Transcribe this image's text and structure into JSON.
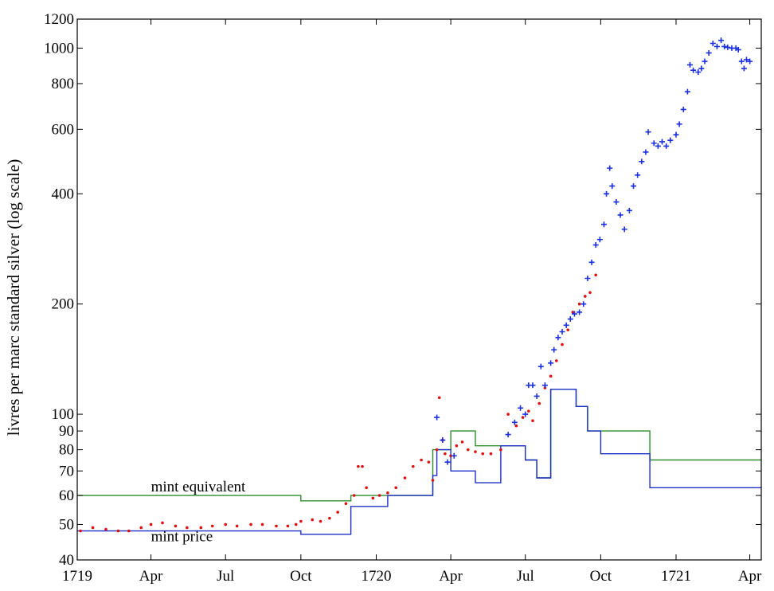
{
  "chart_data": {
    "type": "line",
    "ylabel": "livres per marc standard silver (log scale)",
    "xlabel": "",
    "yscale": "log",
    "ylim": [
      40,
      1200
    ],
    "xlim": [
      "1719-01-01",
      "1721-04-15"
    ],
    "grid": false,
    "y_ticks": [
      40,
      50,
      60,
      70,
      80,
      90,
      100,
      200,
      400,
      600,
      800,
      1000,
      1200
    ],
    "y_tick_labels": [
      "40",
      "50",
      "60",
      "70",
      "80",
      "90",
      "100",
      "200",
      "400",
      "600",
      "800",
      "1000",
      "1200"
    ],
    "x_ticks": [
      {
        "date": "1719-01-01",
        "label": "1719"
      },
      {
        "date": "1719-04-01",
        "label": "Apr"
      },
      {
        "date": "1719-07-01",
        "label": "Jul"
      },
      {
        "date": "1719-10-01",
        "label": "Oct"
      },
      {
        "date": "1720-01-01",
        "label": "1720"
      },
      {
        "date": "1720-04-01",
        "label": "Apr"
      },
      {
        "date": "1720-07-01",
        "label": "Jul"
      },
      {
        "date": "1720-10-01",
        "label": "Oct"
      },
      {
        "date": "1721-01-01",
        "label": "1721"
      },
      {
        "date": "1721-04-01",
        "label": "Apr"
      }
    ],
    "annotations": [
      {
        "text": "mint equivalent",
        "date": "1719-04-01",
        "value": 61.5
      },
      {
        "text": "mint price",
        "date": "1719-04-01",
        "value": 45.0
      }
    ],
    "series": [
      {
        "name": "mint equivalent",
        "style": "step",
        "color": "#2e8b2e",
        "points": [
          [
            "1719-01-01",
            60
          ],
          [
            "1719-10-01",
            58
          ],
          [
            "1719-12-01",
            60
          ],
          [
            "1720-03-10",
            80
          ],
          [
            "1720-04-01",
            90
          ],
          [
            "1720-05-01",
            82
          ],
          [
            "1720-07-01",
            75
          ],
          [
            "1720-07-15",
            67
          ],
          [
            "1720-08-01",
            117
          ],
          [
            "1720-09-01",
            105
          ],
          [
            "1720-09-15",
            90
          ],
          [
            "1720-11-30",
            75
          ],
          [
            "1721-04-15",
            75
          ]
        ]
      },
      {
        "name": "mint price",
        "style": "step",
        "color": "#1f2fc8",
        "points": [
          [
            "1719-01-01",
            48
          ],
          [
            "1719-10-01",
            47
          ],
          [
            "1719-12-01",
            56
          ],
          [
            "1720-01-15",
            60
          ],
          [
            "1720-03-10",
            68
          ],
          [
            "1720-03-15",
            80
          ],
          [
            "1720-04-01",
            70
          ],
          [
            "1720-05-01",
            65
          ],
          [
            "1720-06-01",
            82
          ],
          [
            "1720-07-01",
            75
          ],
          [
            "1720-07-15",
            67
          ],
          [
            "1720-08-01",
            117
          ],
          [
            "1720-09-01",
            105
          ],
          [
            "1720-09-15",
            90
          ],
          [
            "1720-10-01",
            78
          ],
          [
            "1720-11-30",
            63
          ],
          [
            "1721-04-15",
            63
          ]
        ]
      },
      {
        "name": "",
        "style": "dots",
        "color": "#e01010",
        "points": [
          [
            "1719-01-05",
            48
          ],
          [
            "1719-01-20",
            49
          ],
          [
            "1719-02-05",
            48.5
          ],
          [
            "1719-02-20",
            48
          ],
          [
            "1719-03-05",
            48
          ],
          [
            "1719-03-20",
            49
          ],
          [
            "1719-04-01",
            50
          ],
          [
            "1719-04-15",
            50.5
          ],
          [
            "1719-05-01",
            49.5
          ],
          [
            "1719-05-15",
            49
          ],
          [
            "1719-06-01",
            49
          ],
          [
            "1719-06-15",
            49.5
          ],
          [
            "1719-07-01",
            50
          ],
          [
            "1719-07-15",
            49.5
          ],
          [
            "1719-08-01",
            50
          ],
          [
            "1719-08-15",
            50
          ],
          [
            "1719-09-01",
            49.5
          ],
          [
            "1719-09-15",
            49.5
          ],
          [
            "1719-09-25",
            50
          ],
          [
            "1719-10-01",
            51
          ],
          [
            "1719-10-15",
            51.5
          ],
          [
            "1719-10-25",
            51
          ],
          [
            "1719-11-05",
            52
          ],
          [
            "1719-11-15",
            54
          ],
          [
            "1719-11-25",
            57
          ],
          [
            "1719-12-05",
            60
          ],
          [
            "1719-12-10",
            72
          ],
          [
            "1719-12-15",
            72
          ],
          [
            "1719-12-20",
            63
          ],
          [
            "1719-12-28",
            59
          ],
          [
            "1720-01-05",
            60
          ],
          [
            "1720-01-15",
            61
          ],
          [
            "1720-01-25",
            63
          ],
          [
            "1720-02-05",
            67
          ],
          [
            "1720-02-15",
            72
          ],
          [
            "1720-02-25",
            75
          ],
          [
            "1720-03-05",
            74
          ],
          [
            "1720-03-10",
            66
          ],
          [
            "1720-03-15",
            80
          ],
          [
            "1720-03-18",
            111
          ],
          [
            "1720-03-22",
            85
          ],
          [
            "1720-03-25",
            78
          ],
          [
            "1720-04-01",
            77
          ],
          [
            "1720-04-08",
            82
          ],
          [
            "1720-04-15",
            84
          ],
          [
            "1720-04-22",
            80
          ],
          [
            "1720-05-01",
            79
          ],
          [
            "1720-05-10",
            78
          ],
          [
            "1720-05-20",
            78
          ],
          [
            "1720-06-01",
            80
          ],
          [
            "1720-06-10",
            100
          ],
          [
            "1720-06-20",
            93
          ],
          [
            "1720-06-28",
            98
          ],
          [
            "1720-07-05",
            102
          ],
          [
            "1720-07-10",
            96
          ],
          [
            "1720-07-18",
            107
          ],
          [
            "1720-07-25",
            118
          ],
          [
            "1720-08-01",
            127
          ],
          [
            "1720-08-08",
            140
          ],
          [
            "1720-08-15",
            155
          ],
          [
            "1720-08-22",
            170
          ],
          [
            "1720-08-28",
            190
          ],
          [
            "1720-09-05",
            200
          ],
          [
            "1720-09-12",
            210
          ],
          [
            "1720-09-18",
            215
          ],
          [
            "1720-09-25",
            240
          ]
        ]
      },
      {
        "name": "",
        "style": "crosses",
        "color": "#1a2fe0",
        "points": [
          [
            "1720-03-15",
            98
          ],
          [
            "1720-03-22",
            85
          ],
          [
            "1720-03-28",
            74
          ],
          [
            "1720-04-05",
            77
          ],
          [
            "1720-06-10",
            88
          ],
          [
            "1720-06-18",
            95
          ],
          [
            "1720-06-25",
            104
          ],
          [
            "1720-07-01",
            100
          ],
          [
            "1720-07-05",
            120
          ],
          [
            "1720-07-10",
            120
          ],
          [
            "1720-07-15",
            112
          ],
          [
            "1720-07-20",
            135
          ],
          [
            "1720-07-25",
            120
          ],
          [
            "1720-08-01",
            138
          ],
          [
            "1720-08-05",
            150
          ],
          [
            "1720-08-10",
            162
          ],
          [
            "1720-08-15",
            168
          ],
          [
            "1720-08-20",
            175
          ],
          [
            "1720-08-25",
            182
          ],
          [
            "1720-08-30",
            188
          ],
          [
            "1720-09-05",
            190
          ],
          [
            "1720-09-10",
            200
          ],
          [
            "1720-09-15",
            235
          ],
          [
            "1720-09-20",
            260
          ],
          [
            "1720-09-25",
            290
          ],
          [
            "1720-09-30",
            300
          ],
          [
            "1720-10-05",
            330
          ],
          [
            "1720-10-08",
            400
          ],
          [
            "1720-10-12",
            470
          ],
          [
            "1720-10-15",
            420
          ],
          [
            "1720-10-20",
            380
          ],
          [
            "1720-10-25",
            350
          ],
          [
            "1720-10-30",
            320
          ],
          [
            "1720-11-05",
            360
          ],
          [
            "1720-11-10",
            420
          ],
          [
            "1720-11-15",
            450
          ],
          [
            "1720-11-20",
            490
          ],
          [
            "1720-11-25",
            520
          ],
          [
            "1720-11-28",
            590
          ],
          [
            "1720-12-05",
            550
          ],
          [
            "1720-12-10",
            540
          ],
          [
            "1720-12-15",
            555
          ],
          [
            "1720-12-20",
            540
          ],
          [
            "1720-12-25",
            560
          ],
          [
            "1721-01-01",
            580
          ],
          [
            "1721-01-05",
            620
          ],
          [
            "1721-01-10",
            680
          ],
          [
            "1721-01-15",
            760
          ],
          [
            "1721-01-18",
            900
          ],
          [
            "1721-01-22",
            870
          ],
          [
            "1721-01-28",
            860
          ],
          [
            "1721-02-01",
            880
          ],
          [
            "1721-02-05",
            920
          ],
          [
            "1721-02-10",
            970
          ],
          [
            "1721-02-15",
            1030
          ],
          [
            "1721-02-20",
            1010
          ],
          [
            "1721-02-25",
            1050
          ],
          [
            "1721-03-01",
            1010
          ],
          [
            "1721-03-05",
            1005
          ],
          [
            "1721-03-10",
            1000
          ],
          [
            "1721-03-15",
            1000
          ],
          [
            "1721-03-18",
            990
          ],
          [
            "1721-03-22",
            920
          ],
          [
            "1721-03-25",
            880
          ],
          [
            "1721-03-28",
            930
          ],
          [
            "1721-04-01",
            920
          ]
        ]
      }
    ]
  }
}
